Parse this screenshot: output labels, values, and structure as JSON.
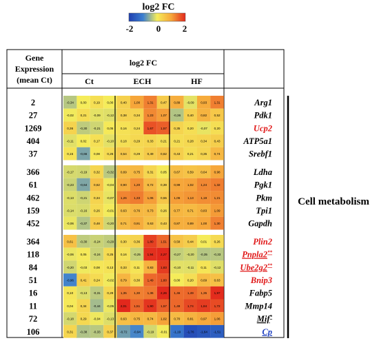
{
  "chart_data": {
    "type": "heatmap",
    "colorbar": {
      "title": "log2 FC",
      "min": -2,
      "max": 2,
      "ticks": [
        "-2",
        "0",
        "2"
      ],
      "colors": [
        "#1f3fb0",
        "#3c7fd0",
        "#f5ec5a",
        "#f6a63a",
        "#e2281c"
      ]
    },
    "header": {
      "col1": [
        "Gene",
        "Expression",
        "(mean Ct)"
      ],
      "super": "log2 FC",
      "groups": [
        "Ct",
        "ECH",
        "HF"
      ]
    },
    "side_label": "Cell metabolism",
    "blocks": [
      [
        {
          "ct": "2",
          "gene": "Arg1",
          "style": "italic",
          "values": [
            -0.34,
            0.0,
            0.19,
            0.0,
            0.4,
            1.0,
            1.31,
            0.47,
            0.89,
            -0.09,
            0.93,
            1.31
          ]
        },
        {
          "ct": "27",
          "gene": "Pdk1",
          "style": "italic",
          "values": [
            -0.02,
            0.21,
            -0.09,
            -0.12,
            0.38,
            0.34,
            1.23,
            1.07,
            -0.36,
            0.4,
            0.82,
            0.52
          ]
        },
        {
          "ct": "1269",
          "gene": "Ucp2",
          "style": "italic-red",
          "values": [
            0.36,
            -0.3,
            -0.21,
            0.05,
            0.16,
            0.24,
            1.67,
            1.57,
            0.35,
            0.2,
            -0.07,
            0.2
          ]
        },
        {
          "ct": "404",
          "gene": "ATP5a1",
          "style": "italic",
          "values": [
            -0.11,
            0.02,
            0.17,
            -0.1,
            0.18,
            0.29,
            0.33,
            0.21,
            0.21,
            0.28,
            0.34,
            0.43
          ]
        },
        {
          "ct": "37",
          "gene": "Srebf1",
          "style": "italic",
          "values": [
            0.15,
            -0.66,
            0.08,
            0.26,
            0.54,
            0.29,
            0.49,
            0.62,
            0.43,
            0.21,
            0.35,
            0.74
          ]
        }
      ],
      [
        {
          "ct": "366",
          "gene": "Ldha",
          "style": "italic",
          "values": [
            -0.17,
            -0.19,
            0.32,
            -0.32,
            0.69,
            0.75,
            0.31,
            0.05,
            0.67,
            0.59,
            0.64,
            0.98
          ]
        },
        {
          "ct": "61",
          "gene": "Pgk1",
          "style": "italic",
          "values": [
            -0.23,
            -0.64,
            0.62,
            -0.04,
            0.9,
            1.2,
            0.72,
            0.39,
            0.99,
            1.02,
            1.24,
            1.32
          ]
        },
        {
          "ct": "462",
          "gene": "Pkm",
          "style": "italic",
          "values": [
            -0.13,
            -0.21,
            0.34,
            -0.07,
            1.26,
            1.33,
            1.06,
            0.55,
            1.06,
            1.13,
            1.19,
            1.21
          ]
        },
        {
          "ct": "159",
          "gene": "Tpi1",
          "style": "italic",
          "values": [
            -0.14,
            -0.16,
            0.26,
            -0.01,
            0.63,
            0.76,
            0.73,
            0.26,
            0.77,
            0.71,
            0.83,
            1.09
          ]
        },
        {
          "ct": "452",
          "gene": "Gapdh",
          "style": "italic",
          "values": [
            -0.06,
            -0.37,
            0.48,
            -0.2,
            0.71,
            0.91,
            0.63,
            0.43,
            0.87,
            0.89,
            1.0,
            1.3
          ]
        }
      ],
      [
        {
          "ct": "364",
          "gene": "Plin2",
          "style": "italic-red",
          "values": [
            0.61,
            -0.3,
            -0.24,
            -0.29,
            0.3,
            0.36,
            1.8,
            1.51,
            0.58,
            0.44,
            0.01,
            0.26
          ]
        },
        {
          "ct": "118",
          "gene": "Pnpla2",
          "mark": "**",
          "style": "italic-red-underline",
          "values": [
            -0.06,
            0.05,
            -0.24,
            0.25,
            0.16,
            -0.25,
            1.94,
            2.27,
            -0.27,
            -0.2,
            -0.35,
            -0.33
          ]
        },
        {
          "ct": "84",
          "gene": "Ube2g2",
          "mark": "**",
          "style": "italic-red-underline",
          "values": [
            -0.2,
            -0.03,
            0.08,
            0.13,
            0.33,
            0.11,
            0.83,
            1.83,
            -0.1,
            -0.11,
            0.11,
            -0.12
          ]
        },
        {
          "ct": "51",
          "gene": "Bnip3",
          "style": "italic-red",
          "values": [
            -0.96,
            0.41,
            0.24,
            -0.02,
            0.79,
            0.3,
            1.49,
            1.6,
            0.0,
            0.2,
            0.69,
            0.63
          ]
        },
        {
          "ct": "16",
          "gene": "Fabp5",
          "style": "italic",
          "values": [
            0.1,
            -0.13,
            -0.31,
            0.29,
            1.35,
            1.3,
            1.36,
            2.26,
            1.46,
            1.49,
            1.35,
            1.97
          ]
        },
        {
          "ct": "11",
          "gene": "Mmp14",
          "style": "italic",
          "values": [
            0.04,
            0.34,
            -0.44,
            -0.05,
            2.01,
            1.51,
            1.9,
            1.57,
            1.49,
            1.74,
            1.84,
            1.72
          ]
        },
        {
          "ct": "72",
          "gene": "Mif",
          "mark": "*",
          "style": "italic-underline",
          "values": [
            -0.18,
            0.29,
            -0.04,
            -0.13,
            0.63,
            0.75,
            0.74,
            1.02,
            0.7,
            0.81,
            0.97,
            1.06
          ]
        },
        {
          "ct": "106",
          "gene": "Cp",
          "style": "italic-blue-underline",
          "values": [
            0.31,
            -0.38,
            -0.33,
            0.37,
            -0.72,
            -0.94,
            -0.19,
            -0.01,
            -1.19,
            -1.76,
            -1.64,
            -1.51
          ]
        }
      ]
    ]
  }
}
